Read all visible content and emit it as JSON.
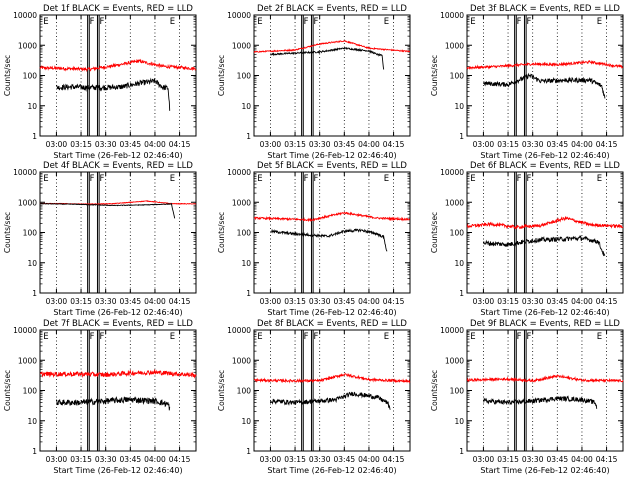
{
  "figure": {
    "xlabel": "Start Time (26-Feb-12 02:46:40)",
    "ylabel": "Counts/sec",
    "x_tick_labels": [
      "03:00",
      "03:15",
      "03:30",
      "03:45",
      "04:00",
      "04:15"
    ],
    "y_tick_labels": [
      "1",
      "10",
      "100",
      "1000",
      "10000"
    ],
    "colors": {
      "events": "#000000",
      "lld": "#ff0000",
      "axes": "#000000"
    }
  },
  "chart_data": [
    {
      "type": "line",
      "title": "Det 1f BLACK = Events, RED = LLD",
      "xlim": [
        "02:50",
        "04:25"
      ],
      "ylim": [
        1,
        10000
      ],
      "yscale": "log",
      "flags": [
        {
          "x": "03:19",
          "label": "F"
        },
        {
          "x": "03:25",
          "label": "F"
        }
      ],
      "annotations": [
        {
          "x": "02:52",
          "label": "E"
        },
        {
          "x": "04:09",
          "label": "E"
        }
      ],
      "vlines": [
        "03:19",
        "03:20",
        "03:25",
        "03:26"
      ],
      "series": [
        {
          "name": "Events",
          "x": [
            "03:00",
            "03:10",
            "03:20",
            "03:30",
            "03:40",
            "03:50",
            "04:00",
            "04:05",
            "04:08",
            "04:09"
          ],
          "values": [
            40,
            42,
            40,
            40,
            42,
            55,
            65,
            40,
            38,
            8
          ],
          "noise": 0.18
        },
        {
          "name": "LLD",
          "x": [
            "02:50",
            "03:05",
            "03:20",
            "03:35",
            "03:50",
            "04:05",
            "04:25"
          ],
          "values": [
            180,
            170,
            160,
            210,
            300,
            200,
            170
          ],
          "noise": 0.1
        }
      ]
    },
    {
      "type": "line",
      "title": "Det 2f BLACK = Events, RED = LLD",
      "xlim": [
        "02:50",
        "04:25"
      ],
      "ylim": [
        1,
        10000
      ],
      "yscale": "log",
      "flags": [
        {
          "x": "03:19",
          "label": "F"
        },
        {
          "x": "03:25",
          "label": "F"
        }
      ],
      "annotations": [
        {
          "x": "02:52",
          "label": "E"
        },
        {
          "x": "04:09",
          "label": "E"
        }
      ],
      "vlines": [
        "03:19",
        "03:20",
        "03:25",
        "03:26"
      ],
      "series": [
        {
          "name": "Events",
          "x": [
            "03:00",
            "03:15",
            "03:30",
            "03:45",
            "04:00",
            "04:05",
            "04:08",
            "04:09"
          ],
          "values": [
            500,
            550,
            600,
            800,
            650,
            500,
            450,
            150
          ],
          "noise": 0.05
        },
        {
          "name": "LLD",
          "x": [
            "02:50",
            "03:15",
            "03:30",
            "03:45",
            "04:00",
            "04:25"
          ],
          "values": [
            600,
            700,
            1100,
            1400,
            800,
            620
          ],
          "noise": 0.04
        }
      ]
    },
    {
      "type": "line",
      "title": "Det 3f BLACK = Events, RED = LLD",
      "xlim": [
        "02:50",
        "04:25"
      ],
      "ylim": [
        1,
        10000
      ],
      "yscale": "log",
      "flags": [
        {
          "x": "03:19",
          "label": "F"
        },
        {
          "x": "03:25",
          "label": "F"
        }
      ],
      "annotations": [
        {
          "x": "02:52",
          "label": "E"
        },
        {
          "x": "04:09",
          "label": "E"
        }
      ],
      "vlines": [
        "03:19",
        "03:20",
        "03:25",
        "03:26"
      ],
      "series": [
        {
          "name": "Events",
          "x": [
            "03:00",
            "03:15",
            "03:28",
            "03:35",
            "03:50",
            "04:05",
            "04:12",
            "04:14"
          ],
          "values": [
            55,
            50,
            100,
            65,
            70,
            70,
            45,
            18
          ],
          "noise": 0.15
        },
        {
          "name": "LLD",
          "x": [
            "02:50",
            "03:10",
            "03:30",
            "03:45",
            "04:05",
            "04:25"
          ],
          "values": [
            180,
            200,
            240,
            230,
            280,
            190
          ],
          "noise": 0.08
        }
      ]
    },
    {
      "type": "line",
      "title": "Det 4f BLACK = Events, RED = LLD",
      "xlim": [
        "02:50",
        "04:25"
      ],
      "ylim": [
        1,
        10000
      ],
      "yscale": "log",
      "flags": [
        {
          "x": "03:19",
          "label": "F"
        },
        {
          "x": "03:25",
          "label": "F"
        }
      ],
      "annotations": [
        {
          "x": "02:52",
          "label": "E"
        },
        {
          "x": "04:09",
          "label": "E"
        }
      ],
      "vlines": [
        "03:19",
        "03:20",
        "03:25",
        "03:26"
      ],
      "series": [
        {
          "name": "Events",
          "x": [
            "02:50",
            "03:15",
            "03:35",
            "03:55",
            "04:10",
            "04:12"
          ],
          "values": [
            900,
            850,
            780,
            820,
            880,
            300
          ],
          "noise": 0.02
        },
        {
          "name": "LLD",
          "x": [
            "02:50",
            "03:20",
            "03:35",
            "03:55",
            "04:10",
            "04:25"
          ],
          "values": [
            920,
            870,
            900,
            1100,
            900,
            880
          ],
          "noise": 0.02
        }
      ]
    },
    {
      "type": "line",
      "title": "Det 5f BLACK = Events, RED = LLD",
      "xlim": [
        "02:50",
        "04:25"
      ],
      "ylim": [
        1,
        10000
      ],
      "yscale": "log",
      "flags": [
        {
          "x": "03:19",
          "label": "F"
        },
        {
          "x": "03:25",
          "label": "F"
        }
      ],
      "annotations": [
        {
          "x": "02:52",
          "label": "E"
        },
        {
          "x": "04:09",
          "label": "E"
        }
      ],
      "vlines": [
        "03:19",
        "03:20",
        "03:25",
        "03:26"
      ],
      "series": [
        {
          "name": "Events",
          "x": [
            "03:00",
            "03:15",
            "03:35",
            "03:45",
            "03:55",
            "04:05",
            "04:09",
            "04:11"
          ],
          "values": [
            110,
            90,
            75,
            110,
            120,
            90,
            70,
            22
          ],
          "noise": 0.08
        },
        {
          "name": "LLD",
          "x": [
            "02:50",
            "03:10",
            "03:25",
            "03:45",
            "04:05",
            "04:25"
          ],
          "values": [
            300,
            280,
            260,
            450,
            300,
            270
          ],
          "noise": 0.06
        }
      ]
    },
    {
      "type": "line",
      "title": "Det 6f BLACK = Events, RED = LLD",
      "xlim": [
        "02:50",
        "04:25"
      ],
      "ylim": [
        1,
        10000
      ],
      "yscale": "log",
      "flags": [
        {
          "x": "03:19",
          "label": "F"
        },
        {
          "x": "03:25",
          "label": "F"
        }
      ],
      "annotations": [
        {
          "x": "02:52",
          "label": "E"
        },
        {
          "x": "04:09",
          "label": "E"
        }
      ],
      "vlines": [
        "03:19",
        "03:20",
        "03:25",
        "03:26"
      ],
      "series": [
        {
          "name": "Events",
          "x": [
            "03:00",
            "03:15",
            "03:30",
            "03:45",
            "04:00",
            "04:10",
            "04:14"
          ],
          "values": [
            45,
            40,
            55,
            60,
            65,
            50,
            15
          ],
          "noise": 0.15
        },
        {
          "name": "LLD",
          "x": [
            "02:50",
            "03:05",
            "03:20",
            "03:35",
            "03:50",
            "04:05",
            "04:25"
          ],
          "values": [
            160,
            190,
            150,
            170,
            300,
            180,
            160
          ],
          "noise": 0.1
        }
      ]
    },
    {
      "type": "line",
      "title": "Det 7f BLACK = Events, RED = LLD",
      "xlim": [
        "02:50",
        "04:25"
      ],
      "ylim": [
        1,
        10000
      ],
      "yscale": "log",
      "flags": [
        {
          "x": "03:19",
          "label": "F"
        },
        {
          "x": "03:25",
          "label": "F"
        }
      ],
      "annotations": [
        {
          "x": "02:52",
          "label": "E"
        },
        {
          "x": "04:09",
          "label": "E"
        }
      ],
      "vlines": [
        "03:19",
        "03:20",
        "03:25",
        "03:26"
      ],
      "series": [
        {
          "name": "Events",
          "x": [
            "03:00",
            "03:15",
            "03:30",
            "03:45",
            "04:00",
            "04:08",
            "04:09"
          ],
          "values": [
            40,
            40,
            45,
            50,
            45,
            35,
            25
          ],
          "noise": 0.2
        },
        {
          "name": "LLD",
          "x": [
            "02:50",
            "03:15",
            "03:30",
            "03:45",
            "04:00",
            "04:25"
          ],
          "values": [
            350,
            350,
            330,
            380,
            400,
            320
          ],
          "noise": 0.15
        }
      ]
    },
    {
      "type": "line",
      "title": "Det 8f BLACK = Events, RED = LLD",
      "xlim": [
        "02:50",
        "04:25"
      ],
      "ylim": [
        1,
        10000
      ],
      "yscale": "log",
      "flags": [
        {
          "x": "03:19",
          "label": "F"
        },
        {
          "x": "03:25",
          "label": "F"
        }
      ],
      "annotations": [
        {
          "x": "02:52",
          "label": "E"
        },
        {
          "x": "04:09",
          "label": "E"
        }
      ],
      "vlines": [
        "03:19",
        "03:20",
        "03:25",
        "03:26"
      ],
      "series": [
        {
          "name": "Events",
          "x": [
            "03:00",
            "03:15",
            "03:30",
            "03:40",
            "03:50",
            "04:05",
            "04:11",
            "04:13"
          ],
          "values": [
            45,
            40,
            45,
            50,
            80,
            60,
            40,
            25
          ],
          "noise": 0.15
        },
        {
          "name": "LLD",
          "x": [
            "02:50",
            "03:10",
            "03:30",
            "03:45",
            "04:00",
            "04:25"
          ],
          "values": [
            220,
            210,
            210,
            340,
            230,
            200
          ],
          "noise": 0.08
        }
      ]
    },
    {
      "type": "line",
      "title": "Det 9f BLACK = Events, RED = LLD",
      "xlim": [
        "02:50",
        "04:25"
      ],
      "ylim": [
        1,
        10000
      ],
      "yscale": "log",
      "flags": [
        {
          "x": "03:19",
          "label": "F"
        },
        {
          "x": "03:25",
          "label": "F"
        }
      ],
      "annotations": [
        {
          "x": "02:52",
          "label": "E"
        },
        {
          "x": "04:09",
          "label": "E"
        }
      ],
      "vlines": [
        "03:19",
        "03:20",
        "03:25",
        "03:26"
      ],
      "series": [
        {
          "name": "Events",
          "x": [
            "03:00",
            "03:15",
            "03:30",
            "03:45",
            "04:00",
            "04:08",
            "04:09"
          ],
          "values": [
            45,
            40,
            45,
            55,
            50,
            40,
            28
          ],
          "noise": 0.15
        },
        {
          "name": "LLD",
          "x": [
            "02:50",
            "03:15",
            "03:30",
            "03:45",
            "04:00",
            "04:25"
          ],
          "values": [
            220,
            240,
            210,
            300,
            220,
            210
          ],
          "noise": 0.08
        }
      ]
    }
  ]
}
